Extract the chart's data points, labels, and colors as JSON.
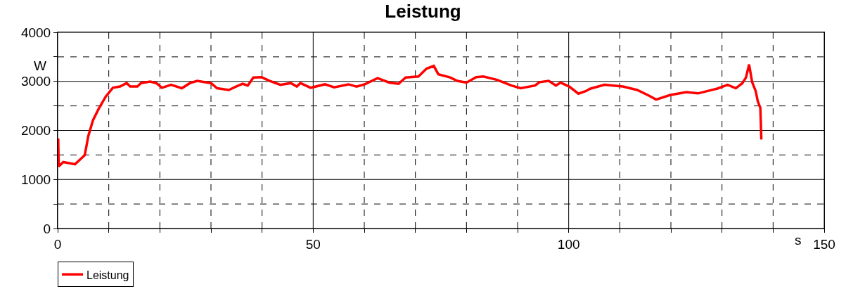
{
  "chart_data": {
    "type": "line",
    "title": "Leistung",
    "xlabel": "s",
    "ylabel": "W",
    "xlim": [
      0,
      150
    ],
    "ylim": [
      0,
      4000
    ],
    "xticks": [
      0,
      {
        "value": 10,
        "label": null
      },
      {
        "value": 20,
        "label": null
      },
      {
        "value": 30,
        "label": null
      },
      {
        "value": 40,
        "label": null
      },
      50,
      {
        "value": 60,
        "label": null
      },
      {
        "value": 70,
        "label": null
      },
      {
        "value": 80,
        "label": null
      },
      {
        "value": 90,
        "label": null
      },
      100,
      {
        "value": 110,
        "label": null
      },
      {
        "value": 120,
        "label": null
      },
      {
        "value": 130,
        "label": null
      },
      {
        "value": 140,
        "label": null
      },
      150
    ],
    "yticks": [
      0,
      {
        "value": 500,
        "label": null
      },
      1000,
      {
        "value": 1500,
        "label": null
      },
      2000,
      {
        "value": 2500,
        "label": null
      },
      3000,
      {
        "value": 3500,
        "label": null
      },
      4000
    ],
    "grid": true,
    "legend": "bottom",
    "line_style": "solid",
    "marker": "none",
    "series": [
      {
        "name": "Leistung",
        "color": "#ff0000",
        "x": [
          0.1,
          0.2,
          1.1,
          3.4,
          5.3,
          6.0,
          6.9,
          8.0,
          9.4,
          10.8,
          12.2,
          13.5,
          14.2,
          15.6,
          16.3,
          18.1,
          19.3,
          20.4,
          22.2,
          24.3,
          25.9,
          27.3,
          28.7,
          30.0,
          31.2,
          33.5,
          34.9,
          36.2,
          37.2,
          38.3,
          39.9,
          41.5,
          43.6,
          45.6,
          46.8,
          47.5,
          49.5,
          52.3,
          54.1,
          56.9,
          58.5,
          60.1,
          62.6,
          64.9,
          66.7,
          68.1,
          70.6,
          72.2,
          73.6,
          74.5,
          76.8,
          78.2,
          80.0,
          81.9,
          83.3,
          86.0,
          88.8,
          90.6,
          93.4,
          94.3,
          96.1,
          97.5,
          98.4,
          100.1,
          101.9,
          103.3,
          104.2,
          107.0,
          110.6,
          113.4,
          115.7,
          117.1,
          119.8,
          123.0,
          125.3,
          129.0,
          131.1,
          132.7,
          134.0,
          134.7,
          135.3,
          135.9,
          136.6,
          137.0,
          137.5,
          137.6,
          137.7
        ],
        "values": [
          1840,
          1265,
          1355,
          1310,
          1495,
          1885,
          2205,
          2435,
          2690,
          2870,
          2895,
          2965,
          2895,
          2895,
          2965,
          2995,
          2965,
          2870,
          2930,
          2860,
          2965,
          3010,
          2985,
          2965,
          2860,
          2825,
          2895,
          2950,
          2915,
          3080,
          3085,
          3010,
          2930,
          2965,
          2895,
          2965,
          2870,
          2940,
          2880,
          2940,
          2895,
          2940,
          3065,
          2975,
          2950,
          3080,
          3100,
          3260,
          3315,
          3145,
          3080,
          3010,
          2975,
          3085,
          3100,
          3030,
          2915,
          2860,
          2915,
          2985,
          3010,
          2915,
          2975,
          2895,
          2750,
          2800,
          2850,
          2930,
          2895,
          2825,
          2710,
          2630,
          2720,
          2780,
          2755,
          2850,
          2930,
          2860,
          2965,
          3080,
          3345,
          2985,
          2800,
          2595,
          2460,
          2160,
          1815
        ]
      }
    ]
  }
}
